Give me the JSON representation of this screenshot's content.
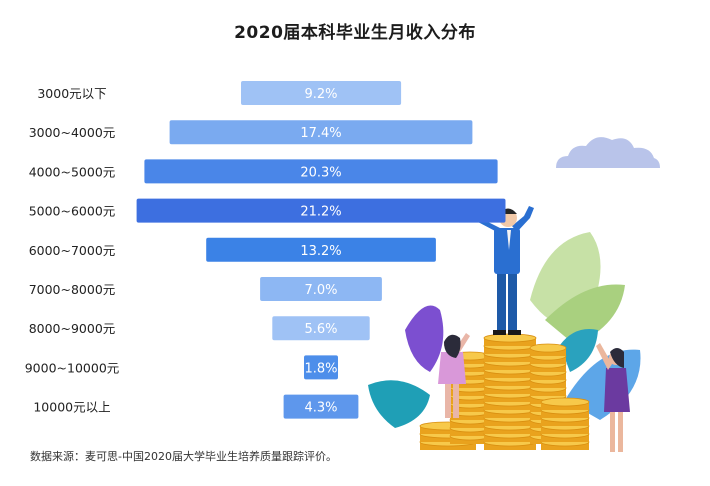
{
  "title": "2020届本科毕业生月收入分布",
  "source": "数据来源：麦可思-中国2020届大学毕业生培养质量跟踪评价。",
  "chart_data": {
    "type": "bar",
    "orientation": "horizontal-centered (funnel)",
    "title": "2020届本科毕业生月收入分布",
    "categories": [
      "3000元以下",
      "3000~4000元",
      "4000~5000元",
      "5000~6000元",
      "6000~7000元",
      "7000~8000元",
      "8000~9000元",
      "9000~10000元",
      "10000元以上"
    ],
    "values": [
      9.2,
      17.4,
      20.3,
      21.2,
      13.2,
      7.0,
      5.6,
      1.8,
      4.3
    ],
    "value_labels": [
      "9.2%",
      "17.4%",
      "20.3%",
      "21.2%",
      "13.2%",
      "7.0%",
      "5.6%",
      "1.8%",
      "4.3%"
    ],
    "bar_colors": [
      "#9fc2f5",
      "#7aaaf0",
      "#4a86e8",
      "#3d6fe0",
      "#3b82e6",
      "#8db7f3",
      "#9fc2f5",
      "#4d8eea",
      "#5e97ec"
    ],
    "unit": "%"
  }
}
